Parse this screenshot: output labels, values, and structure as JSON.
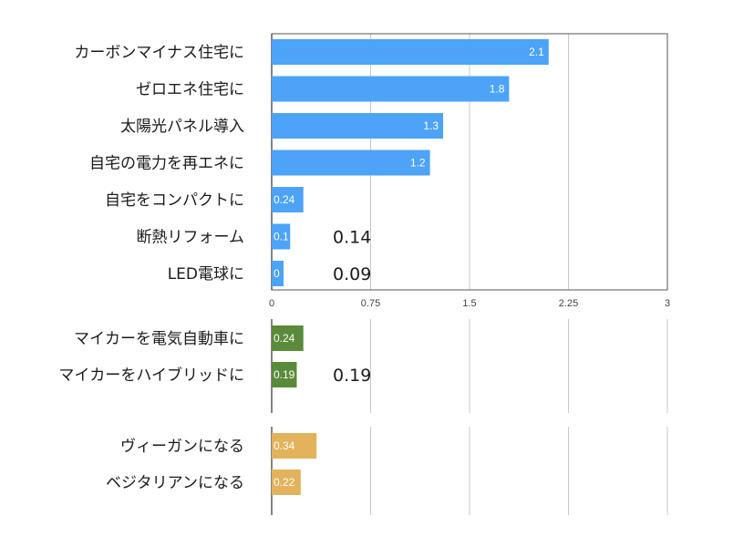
{
  "chart_data": {
    "type": "bar",
    "orientation": "horizontal",
    "xlim": [
      0,
      3
    ],
    "x_ticks": [
      "0",
      "0.75",
      "1.5",
      "2.25",
      "3"
    ],
    "grid": true,
    "groups": [
      {
        "color": "#4da3f7",
        "categories": [
          "カーボンマイナス住宅に",
          "ゼロエネ住宅に",
          "太陽光パネル導入",
          "自宅の電力を再エネに",
          "自宅をコンパクトに",
          "断熱リフォーム",
          "LED電球に"
        ],
        "values": [
          2.1,
          1.8,
          1.3,
          1.2,
          0.24,
          0.14,
          0.09
        ],
        "bar_labels": [
          "2.1",
          "1.8",
          "1.3",
          "1.2",
          "0.24",
          "0.1",
          "0"
        ],
        "annotations": [
          "",
          "",
          "",
          "",
          "",
          "0.14",
          "0.09"
        ]
      },
      {
        "color": "#5a8a3a",
        "categories": [
          "マイカーを電気自動車に",
          "マイカーをハイブリッドに"
        ],
        "values": [
          0.24,
          0.19
        ],
        "bar_labels": [
          "0.24",
          "0.19"
        ],
        "annotations": [
          "",
          "0.19"
        ]
      },
      {
        "color": "#e2b35c",
        "categories": [
          "ヴィーガンになる",
          "ベジタリアンになる"
        ],
        "values": [
          0.34,
          0.22
        ],
        "bar_labels": [
          "0.34",
          "0.22"
        ],
        "annotations": [
          "",
          ""
        ]
      }
    ]
  }
}
